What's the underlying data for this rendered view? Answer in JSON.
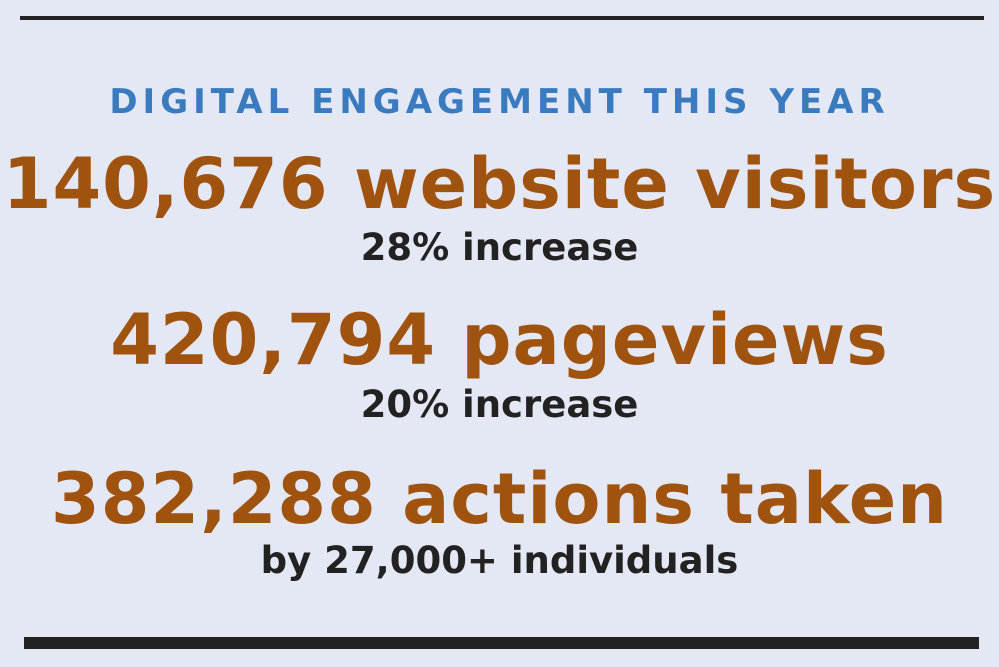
{
  "header": {
    "title": "DIGITAL ENGAGEMENT THIS YEAR"
  },
  "stats": [
    {
      "headline": "140,676 website visitors",
      "detail": "28% increase"
    },
    {
      "headline": "420,794 pageviews",
      "detail": "20% increase"
    },
    {
      "headline": "382,288 actions taken",
      "detail": "by 27,000+ individuals"
    }
  ]
}
